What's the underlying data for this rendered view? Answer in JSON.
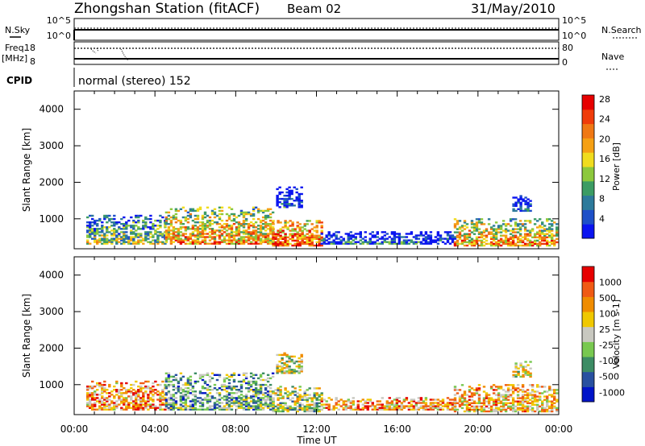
{
  "header": {
    "station": "Zhongshan Station (fitACF)",
    "beam": "Beam 02",
    "date": "31/May/2010"
  },
  "top_panels": {
    "nsky_label": "N.Sky",
    "nsky_hi": "10^5",
    "nsky_lo": "10^0",
    "nsearch_label": "N.Search",
    "nsearch_hi": "10^5",
    "nsearch_lo": "10^0",
    "freq_label": "Freq.",
    "freq_unit": "[MHz]",
    "freq_hi": "18",
    "freq_lo": "8",
    "nave_label": "Nave",
    "nave_hi": "80",
    "nave_lo": "0",
    "cpid_label": "CPID",
    "cpid_text": "normal (stereo) 152"
  },
  "chart_data": [
    {
      "type": "heatmap",
      "name": "power",
      "ylabel": "Slant Range [km]",
      "xlabel": "",
      "ylim": [
        180,
        4500
      ],
      "xlim_hours": [
        0,
        24
      ],
      "yticks": [
        "1000",
        "2000",
        "3000",
        "4000"
      ],
      "colorbar_label": "Power [dB]",
      "colorbar_ticks": [
        "4",
        "8",
        "12",
        "16",
        "20",
        "24",
        "28"
      ],
      "colorbar_colors": [
        "#0a14f0",
        "#1e50c8",
        "#2d7a9b",
        "#3c9c64",
        "#8cc83c",
        "#f0dc1e",
        "#f5a014",
        "#f07814",
        "#f03c0a",
        "#e60000"
      ],
      "clusters": [
        {
          "t0": 0.6,
          "t1": 4.5,
          "r0": 300,
          "r1": 1100,
          "level": 0.45
        },
        {
          "t0": 4.5,
          "t1": 9.8,
          "r0": 300,
          "r1": 1300,
          "level": 0.7
        },
        {
          "t0": 9.8,
          "t1": 12.2,
          "r0": 250,
          "r1": 950,
          "level": 0.85
        },
        {
          "t0": 10.0,
          "t1": 11.2,
          "r0": 1300,
          "r1": 1850,
          "level": 0.15
        },
        {
          "t0": 12.2,
          "t1": 18.8,
          "r0": 300,
          "r1": 650,
          "level": 0.2
        },
        {
          "t0": 18.8,
          "t1": 23.9,
          "r0": 250,
          "r1": 1000,
          "level": 0.7
        },
        {
          "t0": 21.7,
          "t1": 22.6,
          "r0": 1200,
          "r1": 1650,
          "level": 0.15
        }
      ]
    },
    {
      "type": "heatmap",
      "name": "velocity",
      "ylabel": "Slant Range [km]",
      "xlabel": "Time UT",
      "ylim": [
        180,
        4500
      ],
      "xlim_hours": [
        0,
        24
      ],
      "yticks": [
        "1000",
        "2000",
        "3000",
        "4000"
      ],
      "xticks": [
        "00:00",
        "04:00",
        "08:00",
        "12:00",
        "16:00",
        "20:00",
        "00:00"
      ],
      "colorbar_label": "Velocity [m s-1]",
      "colorbar_ticks": [
        "1000",
        "500",
        "100",
        "25",
        "-25",
        "-100",
        "-500",
        "-1000"
      ],
      "colorbar_colors": [
        "#0014c8",
        "#2850a0",
        "#3c8c64",
        "#78c850",
        "#c8c8c0",
        "#f0c800",
        "#f08c00",
        "#f05a14",
        "#e60000"
      ],
      "clusters": [
        {
          "t0": 0.6,
          "t1": 4.5,
          "r0": 300,
          "r1": 1100,
          "level": 0.7
        },
        {
          "t0": 4.5,
          "t1": 9.8,
          "r0": 300,
          "r1": 1300,
          "level": 0.35
        },
        {
          "t0": 9.8,
          "t1": 12.2,
          "r0": 250,
          "r1": 950,
          "level": 0.45
        },
        {
          "t0": 10.0,
          "t1": 11.2,
          "r0": 1300,
          "r1": 1850,
          "level": 0.5
        },
        {
          "t0": 12.2,
          "t1": 18.8,
          "r0": 300,
          "r1": 650,
          "level": 0.7
        },
        {
          "t0": 18.8,
          "t1": 23.9,
          "r0": 250,
          "r1": 1000,
          "level": 0.65
        },
        {
          "t0": 21.7,
          "t1": 22.6,
          "r0": 1200,
          "r1": 1650,
          "level": 0.5
        }
      ]
    }
  ]
}
